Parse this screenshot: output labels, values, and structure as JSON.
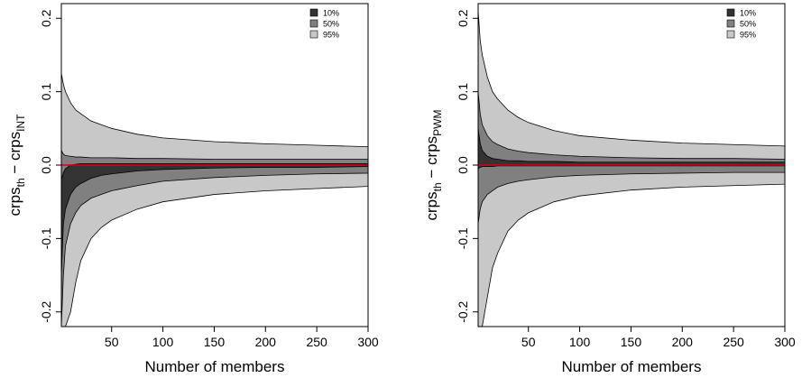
{
  "chart_data": [
    {
      "type": "band",
      "ylabel": [
        "crps",
        "th",
        " − crps",
        "INT"
      ],
      "xlabel": "Number of members",
      "x": [
        1,
        3,
        5,
        10,
        15,
        20,
        30,
        40,
        50,
        75,
        100,
        150,
        200,
        250,
        300
      ],
      "series": [
        {
          "name": "10%",
          "color": "#333333",
          "upper": [
            -0.02,
            -0.01,
            -0.005,
            0.0,
            0.001,
            0.002,
            0.002,
            0.002,
            0.002,
            0.002,
            0.002,
            0.002,
            0.002,
            0.002,
            0.002
          ],
          "lower": [
            -0.15,
            -0.08,
            -0.06,
            -0.04,
            -0.03,
            -0.025,
            -0.018,
            -0.014,
            -0.012,
            -0.008,
            -0.006,
            -0.004,
            -0.003,
            -0.003,
            -0.002
          ]
        },
        {
          "name": "50%",
          "color": "#808080",
          "upper": [
            0.02,
            0.015,
            0.013,
            0.012,
            0.011,
            0.011,
            0.01,
            0.01,
            0.01,
            0.009,
            0.009,
            0.008,
            0.008,
            0.008,
            0.008
          ],
          "lower": [
            -0.22,
            -0.15,
            -0.11,
            -0.08,
            -0.065,
            -0.055,
            -0.045,
            -0.04,
            -0.035,
            -0.028,
            -0.022,
            -0.017,
            -0.014,
            -0.012,
            -0.011
          ]
        },
        {
          "name": "95%",
          "color": "#c8c8c8",
          "upper": [
            0.125,
            0.11,
            0.1,
            0.085,
            0.075,
            0.07,
            0.06,
            0.055,
            0.05,
            0.042,
            0.037,
            0.032,
            0.029,
            0.027,
            0.025
          ],
          "lower": [
            -0.22,
            -0.22,
            -0.22,
            -0.2,
            -0.16,
            -0.13,
            -0.1,
            -0.085,
            -0.075,
            -0.06,
            -0.05,
            -0.04,
            -0.035,
            -0.032,
            -0.029
          ]
        }
      ],
      "reference_line": {
        "value": 0,
        "color": "#e00000"
      },
      "xlim": [
        1,
        300
      ],
      "xticks": [
        50,
        100,
        150,
        200,
        250,
        300
      ],
      "ylim": [
        -0.22,
        0.22
      ],
      "yticks": [
        -0.2,
        -0.1,
        {
          "value": 0,
          "label": "0.0"
        },
        0.1,
        0.2
      ],
      "legend": "top-right"
    },
    {
      "type": "band",
      "ylabel": [
        "crps",
        "th",
        " − crps",
        "PWM"
      ],
      "xlabel": "Number of members",
      "x": [
        1,
        3,
        5,
        10,
        15,
        20,
        30,
        40,
        50,
        75,
        100,
        150,
        200,
        250,
        300
      ],
      "series": [
        {
          "name": "10%",
          "color": "#333333",
          "upper": [
            0.05,
            0.03,
            0.02,
            0.012,
            0.009,
            0.008,
            0.006,
            0.006,
            0.005,
            0.005,
            0.004,
            0.004,
            0.004,
            0.004,
            0.004
          ],
          "lower": [
            -0.005,
            -0.003,
            -0.002,
            -0.002,
            -0.002,
            -0.001,
            -0.001,
            -0.001,
            -0.001,
            -0.001,
            -0.001,
            -0.001,
            -0.001,
            -0.001,
            -0.001
          ]
        },
        {
          "name": "50%",
          "color": "#808080",
          "upper": [
            0.1,
            0.07,
            0.055,
            0.04,
            0.032,
            0.028,
            0.022,
            0.019,
            0.017,
            0.014,
            0.012,
            0.01,
            0.009,
            0.009,
            0.008
          ],
          "lower": [
            -0.08,
            -0.06,
            -0.05,
            -0.04,
            -0.035,
            -0.03,
            -0.025,
            -0.022,
            -0.02,
            -0.016,
            -0.014,
            -0.012,
            -0.011,
            -0.01,
            -0.01
          ]
        },
        {
          "name": "95%",
          "color": "#c8c8c8",
          "upper": [
            0.21,
            0.17,
            0.15,
            0.12,
            0.1,
            0.09,
            0.075,
            0.065,
            0.058,
            0.047,
            0.04,
            0.034,
            0.03,
            0.028,
            0.026
          ],
          "lower": [
            -0.22,
            -0.22,
            -0.22,
            -0.18,
            -0.14,
            -0.12,
            -0.09,
            -0.075,
            -0.065,
            -0.05,
            -0.042,
            -0.034,
            -0.03,
            -0.028,
            -0.026
          ]
        }
      ],
      "reference_line": {
        "value": 0,
        "color": "#e00000"
      },
      "xlim": [
        1,
        300
      ],
      "xticks": [
        50,
        100,
        150,
        200,
        250,
        300
      ],
      "ylim": [
        -0.22,
        0.22
      ],
      "yticks": [
        -0.2,
        -0.1,
        {
          "value": 0,
          "label": "0.0"
        },
        0.1,
        0.2
      ],
      "legend": "top-right"
    }
  ]
}
